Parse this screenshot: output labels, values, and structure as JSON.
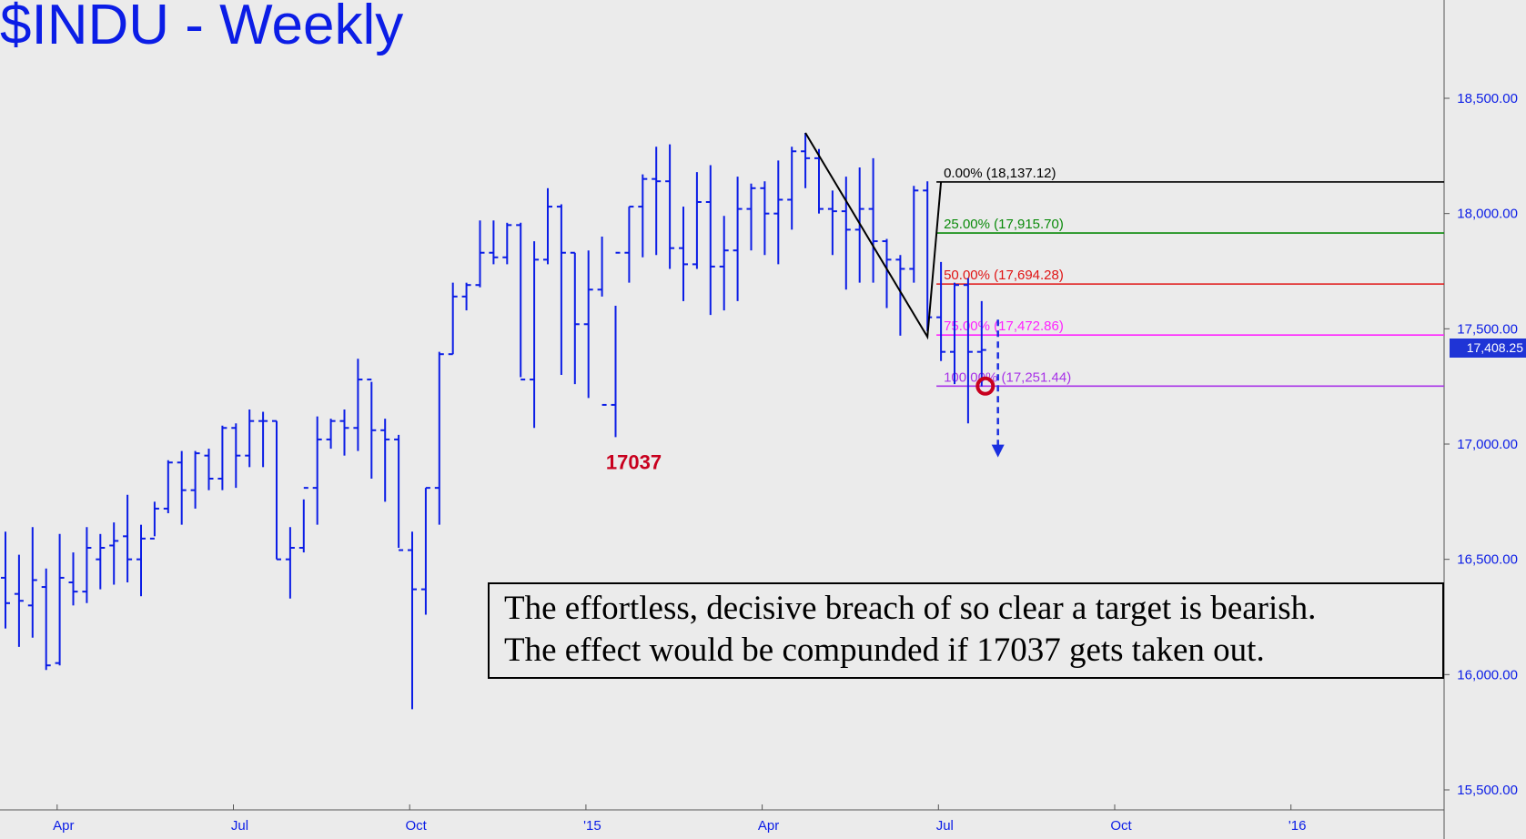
{
  "title": "$INDU - Weekly",
  "note": {
    "line1": "The effortless, decisive breach of so clear a target is bearish.",
    "line2": "The effect would be compunded if 17037 gets taken out."
  },
  "low_label": "17037",
  "last_price": "17,408.25",
  "colors": {
    "bars": "#0b1de6",
    "background": "#ebebeb",
    "fib_0": "#000000",
    "fib_25": "#0a8a0a",
    "fib_50": "#e01414",
    "fib_75": "#ff22ff",
    "fib_100": "#a833e8",
    "marker": "#c8001e",
    "price_tag": "#1f34d6"
  },
  "chart_data": {
    "type": "ohlc",
    "interval": "weekly",
    "ylim": [
      15400,
      18900
    ],
    "y_ticks": [
      {
        "value": 15500,
        "label": "15,500.00"
      },
      {
        "value": 16000,
        "label": "16,000.00"
      },
      {
        "value": 16500,
        "label": "16,500.00"
      },
      {
        "value": 17000,
        "label": "17,000.00"
      },
      {
        "value": 17500,
        "label": "17,500.00"
      },
      {
        "value": 18000,
        "label": "18,000.00"
      },
      {
        "value": 18500,
        "label": "18,500.00"
      }
    ],
    "x_ticks": [
      {
        "index": 2,
        "label": "Apr"
      },
      {
        "index": 15,
        "label": "Jul"
      },
      {
        "index": 28,
        "label": "Oct"
      },
      {
        "index": 41,
        "label": "'15"
      },
      {
        "index": 54,
        "label": "Apr"
      },
      {
        "index": 67,
        "label": "Jul"
      },
      {
        "index": 80,
        "label": "Oct"
      },
      {
        "index": 93,
        "label": "'16"
      }
    ],
    "bars": [
      [
        16420,
        16620,
        16200,
        16310
      ],
      [
        16350,
        16520,
        16120,
        16320
      ],
      [
        16300,
        16640,
        16160,
        16410
      ],
      [
        16380,
        16460,
        16020,
        16040
      ],
      [
        16050,
        16610,
        16040,
        16420
      ],
      [
        16400,
        16530,
        16300,
        16360
      ],
      [
        16360,
        16640,
        16310,
        16550
      ],
      [
        16500,
        16610,
        16370,
        16550
      ],
      [
        16560,
        16660,
        16390,
        16580
      ],
      [
        16600,
        16780,
        16400,
        16500
      ],
      [
        16500,
        16650,
        16340,
        16590
      ],
      [
        16590,
        16750,
        16600,
        16720
      ],
      [
        16720,
        16930,
        16700,
        16920
      ],
      [
        16920,
        16970,
        16650,
        16800
      ],
      [
        16800,
        16970,
        16720,
        16960
      ],
      [
        16950,
        16980,
        16800,
        16850
      ],
      [
        16850,
        17080,
        16800,
        17070
      ],
      [
        17070,
        17090,
        16810,
        16950
      ],
      [
        16950,
        17150,
        16900,
        17100
      ],
      [
        17100,
        17140,
        16900,
        17100
      ],
      [
        17100,
        17100,
        16500,
        16500
      ],
      [
        16500,
        16640,
        16330,
        16550
      ],
      [
        16550,
        16760,
        16530,
        16810
      ],
      [
        16810,
        17120,
        16650,
        17020
      ],
      [
        17020,
        17110,
        16980,
        17100
      ],
      [
        17100,
        17150,
        16950,
        17070
      ],
      [
        17070,
        17370,
        16970,
        17280
      ],
      [
        17280,
        17270,
        16850,
        17060
      ],
      [
        17060,
        17110,
        16750,
        17020
      ],
      [
        17020,
        17040,
        16550,
        16540
      ],
      [
        16540,
        16620,
        15850,
        16370
      ],
      [
        16370,
        16810,
        16260,
        16810
      ],
      [
        16810,
        17400,
        16650,
        17390
      ],
      [
        17390,
        17700,
        17390,
        17640
      ],
      [
        17640,
        17700,
        17580,
        17690
      ],
      [
        17690,
        17970,
        17680,
        17830
      ],
      [
        17830,
        17970,
        17780,
        17810
      ],
      [
        17810,
        17960,
        17780,
        17950
      ],
      [
        17950,
        17960,
        17290,
        17280
      ],
      [
        17280,
        17880,
        17070,
        17800
      ],
      [
        17800,
        18110,
        17780,
        18030
      ],
      [
        18030,
        18040,
        17300,
        17830
      ],
      [
        17830,
        17830,
        17260,
        17520
      ],
      [
        17520,
        17840,
        17200,
        17670
      ],
      [
        17670,
        17900,
        17640,
        17170
      ],
      [
        17170,
        17600,
        17030,
        17830
      ],
      [
        17830,
        18030,
        17700,
        18030
      ],
      [
        18030,
        18170,
        17810,
        18150
      ],
      [
        18150,
        18290,
        17820,
        18140
      ],
      [
        18140,
        18300,
        17760,
        17850
      ],
      [
        17850,
        18030,
        17620,
        17780
      ],
      [
        17780,
        18180,
        17760,
        18050
      ],
      [
        18050,
        18210,
        17560,
        17770
      ],
      [
        17770,
        17990,
        17580,
        17840
      ],
      [
        17840,
        18160,
        17620,
        18020
      ],
      [
        18020,
        18130,
        17840,
        18110
      ],
      [
        18110,
        18140,
        17820,
        18000
      ],
      [
        18000,
        18230,
        17780,
        18060
      ],
      [
        18060,
        18290,
        17930,
        18270
      ],
      [
        18270,
        18350,
        18110,
        18240
      ],
      [
        18240,
        18280,
        18000,
        18020
      ],
      [
        18020,
        18100,
        17820,
        18010
      ],
      [
        18010,
        18160,
        17670,
        17930
      ],
      [
        17930,
        18200,
        17700,
        18020
      ],
      [
        18020,
        18240,
        17700,
        17880
      ],
      [
        17880,
        17890,
        17590,
        17800
      ],
      [
        17800,
        17820,
        17470,
        17760
      ],
      [
        17760,
        18120,
        17700,
        18100
      ],
      [
        18100,
        18140,
        17490,
        17550
      ],
      [
        17550,
        17790,
        17360,
        17400
      ],
      [
        17400,
        17700,
        17260,
        17690
      ],
      [
        17690,
        17720,
        17090,
        17400
      ],
      [
        17400,
        17620,
        17250,
        17408.25
      ]
    ],
    "zigzag": [
      {
        "index": 59,
        "value": 18350
      },
      {
        "index": 68,
        "value": 17465
      },
      {
        "index": 69,
        "value": 18137
      }
    ],
    "fib_levels": [
      {
        "pct": "0.00%",
        "value": 18137.12,
        "label": "0.00% (18,137.12)",
        "color": "#000000"
      },
      {
        "pct": "25.00%",
        "value": 17915.7,
        "label": "25.00% (17,915.70)",
        "color": "#0a8a0a"
      },
      {
        "pct": "50.00%",
        "value": 17694.28,
        "label": "50.00% (17,694.28)",
        "color": "#e01414"
      },
      {
        "pct": "75.00%",
        "value": 17472.86,
        "label": "75.00% (17,472.86)",
        "color": "#ff22ff"
      },
      {
        "pct": "100.00%",
        "value": 17251.44,
        "label": "100.00% (17,251.44)",
        "color": "#a833e8"
      }
    ],
    "target_marker": {
      "index": 72,
      "value": 17251.44
    },
    "projection_arrow": {
      "index": 73,
      "from": 17540,
      "to": 16950
    },
    "low_annotation": {
      "index": 45,
      "value": 17037
    }
  }
}
